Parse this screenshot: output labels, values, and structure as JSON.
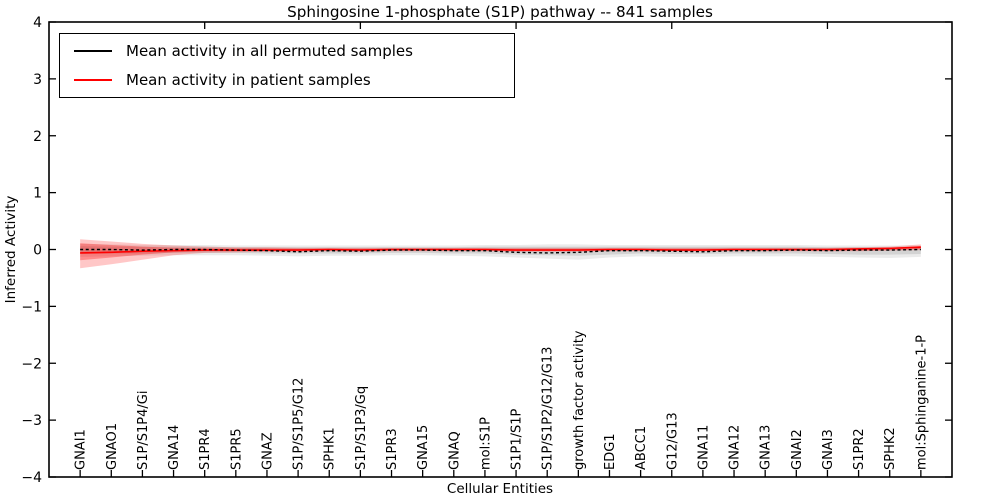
{
  "colors": {
    "permuted_line": "#000000",
    "patient_line": "#ff0000",
    "frame": "#000000",
    "background": "#ffffff"
  },
  "chart_data": {
    "type": "line",
    "title": "Sphingosine 1-phosphate (S1P) pathway -- 841 samples",
    "xlabel": "Cellular Entities",
    "ylabel": "Inferred Activity",
    "ylim": [
      -4,
      4
    ],
    "yticks": [
      4,
      3,
      2,
      1,
      0,
      -1,
      -2,
      -3,
      -4
    ],
    "ytick_labels": [
      "4",
      "3",
      "2",
      "1",
      "0",
      "−1",
      "−2",
      "−3",
      "−4"
    ],
    "x_major_ticks": [
      5,
      10,
      15,
      20,
      25
    ],
    "grid": false,
    "legend_position": "upper left",
    "categories": [
      "GNAI1",
      "GNAO1",
      "S1P/S1P4/Gi",
      "GNA14",
      "S1PR4",
      "S1PR5",
      "GNAZ",
      "S1P/S1P5/G12",
      "SPHK1",
      "S1P/S1P3/Gq",
      "S1PR3",
      "GNA15",
      "GNAQ",
      "mol:S1P",
      "S1P1/S1P",
      "S1P/S1P2/G12/G13",
      "growth factor activity",
      "EDG1",
      "ABCC1",
      "G12/G13",
      "GNA11",
      "GNA12",
      "GNA13",
      "GNAI2",
      "GNAI3",
      "S1PR2",
      "SPHK2",
      "mol:Sphinganine-1-P"
    ],
    "series": [
      {
        "name": "Mean activity in all permuted samples",
        "color": "#000000",
        "style": "dashed",
        "values": [
          0.0,
          0.0,
          -0.01,
          0.0,
          0.0,
          -0.01,
          -0.02,
          -0.04,
          -0.02,
          -0.03,
          -0.01,
          -0.01,
          -0.02,
          -0.02,
          -0.05,
          -0.06,
          -0.05,
          -0.02,
          -0.02,
          -0.03,
          -0.04,
          -0.02,
          -0.02,
          -0.01,
          -0.02,
          -0.01,
          -0.01,
          0.0
        ]
      },
      {
        "name": "Mean activity in patient samples",
        "color": "#ff0000",
        "style": "solid",
        "values": [
          -0.06,
          -0.05,
          -0.03,
          -0.02,
          -0.01,
          -0.01,
          -0.01,
          -0.01,
          0.0,
          -0.01,
          0.0,
          0.0,
          0.0,
          0.0,
          -0.01,
          -0.01,
          -0.01,
          0.0,
          0.0,
          -0.01,
          -0.01,
          0.0,
          0.0,
          0.0,
          0.0,
          0.01,
          0.02,
          0.04
        ]
      }
    ],
    "bands": [
      {
        "name": "permuted-std-outer",
        "color": "#000000",
        "opacity": 0.08,
        "hi": [
          0.1,
          0.09,
          0.08,
          0.08,
          0.08,
          0.07,
          0.07,
          0.07,
          0.07,
          0.07,
          0.07,
          0.07,
          0.07,
          0.08,
          0.08,
          0.09,
          0.09,
          0.08,
          0.08,
          0.08,
          0.08,
          0.08,
          0.08,
          0.08,
          0.07,
          0.07,
          0.07,
          0.07
        ],
        "lo": [
          -0.13,
          -0.12,
          -0.11,
          -0.1,
          -0.1,
          -0.1,
          -0.11,
          -0.12,
          -0.11,
          -0.11,
          -0.1,
          -0.1,
          -0.11,
          -0.12,
          -0.14,
          -0.16,
          -0.18,
          -0.14,
          -0.12,
          -0.13,
          -0.13,
          -0.12,
          -0.12,
          -0.12,
          -0.13,
          -0.14,
          -0.15,
          -0.13
        ]
      },
      {
        "name": "permuted-std-inner",
        "color": "#000000",
        "opacity": 0.1,
        "hi": [
          0.06,
          0.05,
          0.05,
          0.05,
          0.05,
          0.04,
          0.04,
          0.04,
          0.04,
          0.04,
          0.04,
          0.04,
          0.04,
          0.05,
          0.05,
          0.05,
          0.05,
          0.05,
          0.05,
          0.05,
          0.05,
          0.05,
          0.05,
          0.05,
          0.04,
          0.04,
          0.04,
          0.04
        ],
        "lo": [
          -0.08,
          -0.07,
          -0.07,
          -0.06,
          -0.06,
          -0.06,
          -0.07,
          -0.07,
          -0.07,
          -0.07,
          -0.06,
          -0.06,
          -0.07,
          -0.07,
          -0.09,
          -0.1,
          -0.11,
          -0.09,
          -0.07,
          -0.08,
          -0.08,
          -0.07,
          -0.07,
          -0.07,
          -0.08,
          -0.09,
          -0.09,
          -0.08
        ]
      },
      {
        "name": "patient-std-outer",
        "color": "#ff0000",
        "opacity": 0.22,
        "hi": [
          0.18,
          0.14,
          0.1,
          0.07,
          0.05,
          0.04,
          0.04,
          0.03,
          0.03,
          0.03,
          0.03,
          0.03,
          0.03,
          0.03,
          0.03,
          0.03,
          0.03,
          0.03,
          0.03,
          0.03,
          0.03,
          0.03,
          0.03,
          0.03,
          0.03,
          0.04,
          0.05,
          0.09
        ],
        "lo": [
          -0.33,
          -0.26,
          -0.18,
          -0.1,
          -0.06,
          -0.05,
          -0.04,
          -0.04,
          -0.03,
          -0.04,
          -0.03,
          -0.03,
          -0.03,
          -0.03,
          -0.04,
          -0.04,
          -0.04,
          -0.03,
          -0.03,
          -0.03,
          -0.03,
          -0.03,
          -0.03,
          -0.03,
          -0.03,
          -0.03,
          -0.02,
          -0.01
        ],
        "note": ""
      },
      {
        "name": "patient-std-inner",
        "color": "#ff0000",
        "opacity": 0.3,
        "hi": [
          0.11,
          0.08,
          0.05,
          0.03,
          0.02,
          0.02,
          0.02,
          0.015,
          0.015,
          0.015,
          0.015,
          0.015,
          0.015,
          0.015,
          0.015,
          0.015,
          0.015,
          0.015,
          0.015,
          0.015,
          0.015,
          0.015,
          0.015,
          0.015,
          0.015,
          0.02,
          0.03,
          0.06
        ],
        "lo": [
          -0.19,
          -0.14,
          -0.09,
          -0.05,
          -0.03,
          -0.03,
          -0.025,
          -0.025,
          -0.02,
          -0.025,
          -0.02,
          -0.02,
          -0.02,
          -0.02,
          -0.025,
          -0.025,
          -0.025,
          -0.02,
          -0.02,
          -0.02,
          -0.02,
          -0.02,
          -0.02,
          -0.02,
          -0.02,
          -0.02,
          -0.01,
          0.01
        ]
      }
    ]
  }
}
